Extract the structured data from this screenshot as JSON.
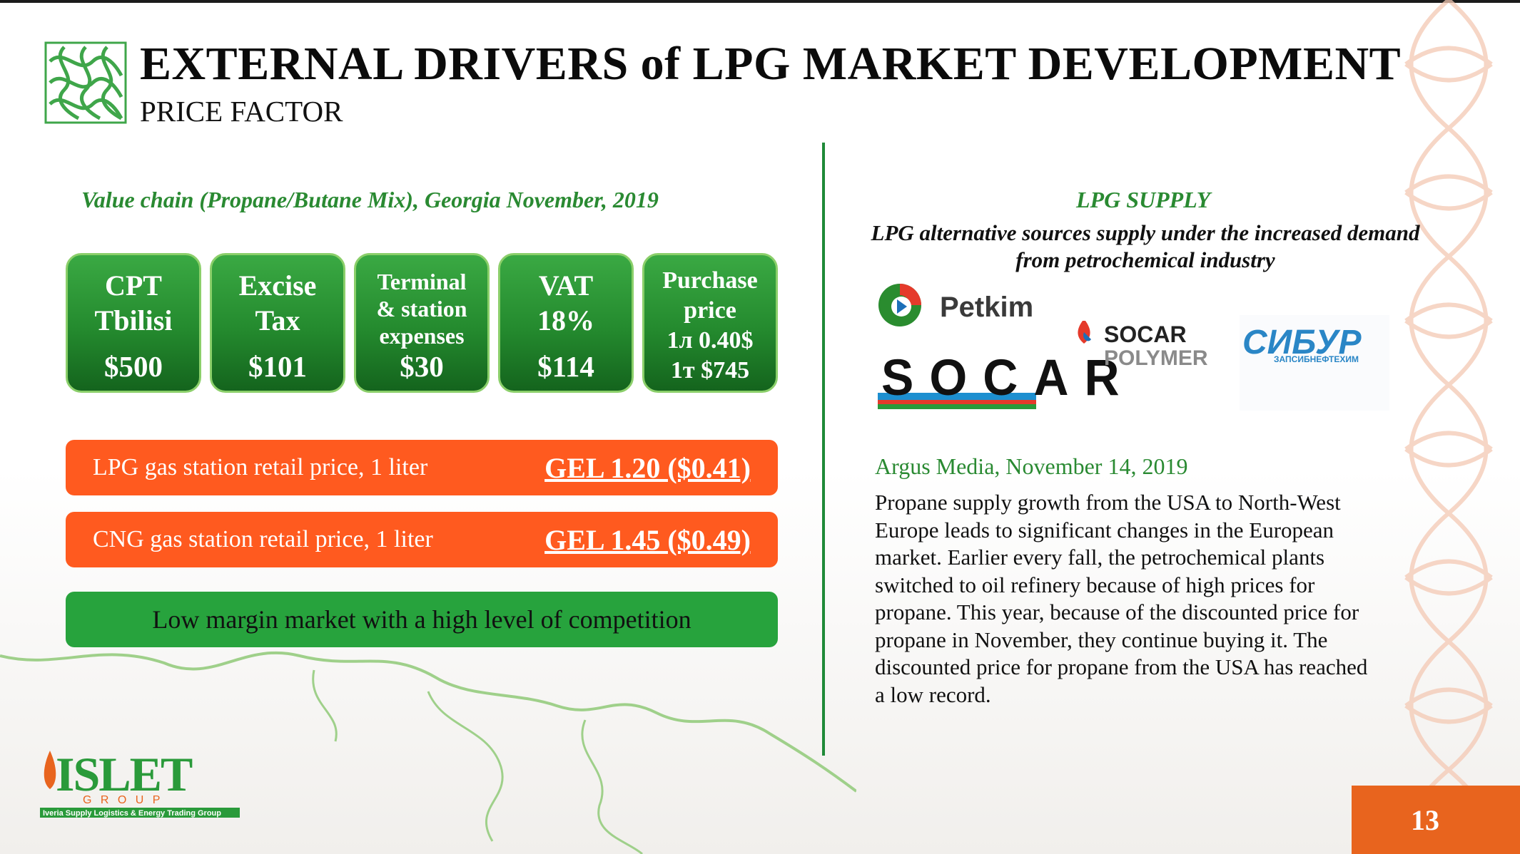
{
  "header": {
    "title": "EXTERNAL DRIVERS of LPG MARKET DEVELOPMENT",
    "subtitle": "PRICE FACTOR"
  },
  "value_chain": {
    "caption": "Value chain (Propane/Butane Mix), Georgia November, 2019",
    "cards": [
      {
        "line1": "CPT",
        "line2": "Tbilisi",
        "value": "$500"
      },
      {
        "line1": "Excise",
        "line2": "Tax",
        "value": "$101"
      },
      {
        "line1": "Terminal",
        "line2": "& station",
        "line3": "expenses",
        "value": "$30"
      },
      {
        "line1": "VAT",
        "line2": "18%",
        "value": "$114"
      },
      {
        "line1": "Purchase",
        "line2": "price",
        "line3": "1л 0.40$",
        "line4": "1т $745"
      }
    ]
  },
  "retail": {
    "lpg_label": "LPG gas station retail price, 1 liter",
    "lpg_price": "GEL 1.20 ($0.41)",
    "cng_label": "CNG gas station retail price, 1 liter",
    "cng_price": "GEL 1.45 ($0.49)",
    "margin_note": "Low margin market with a high level of competition"
  },
  "supply": {
    "title": "LPG SUPPLY",
    "description": "LPG alternative sources supply under the increased demand from petrochemical industry",
    "logos": {
      "petkim": "Petkim",
      "socar": "SOCAR",
      "socar_polymer_1": "SOCAR",
      "socar_polymer_2": "POLYMER",
      "sibur": "СИБУР",
      "sibur_sub": "ЗАПСИБНЕФТЕХИМ"
    }
  },
  "article": {
    "source": "Argus Media, November 14, 2019",
    "text": "Propane supply growth from the USA to North-West Europe leads to significant changes in the European market. Earlier every fall, the petrochemical plants switched to oil refinery because of high prices for propane. This year, because of the discounted price for propane in November, they continue buying it. The discounted price for propane from the USA has reached a low record."
  },
  "footer": {
    "logo_main": "ISLET",
    "logo_group": "G R O U P",
    "logo_tagline": "Iveria Supply Logistics & Energy Trading Group",
    "page_number": "13"
  },
  "colors": {
    "green": "#27a33d",
    "dark_green": "#2a8a32",
    "orange": "#ff5a1f",
    "page_orange": "#e8641e"
  }
}
